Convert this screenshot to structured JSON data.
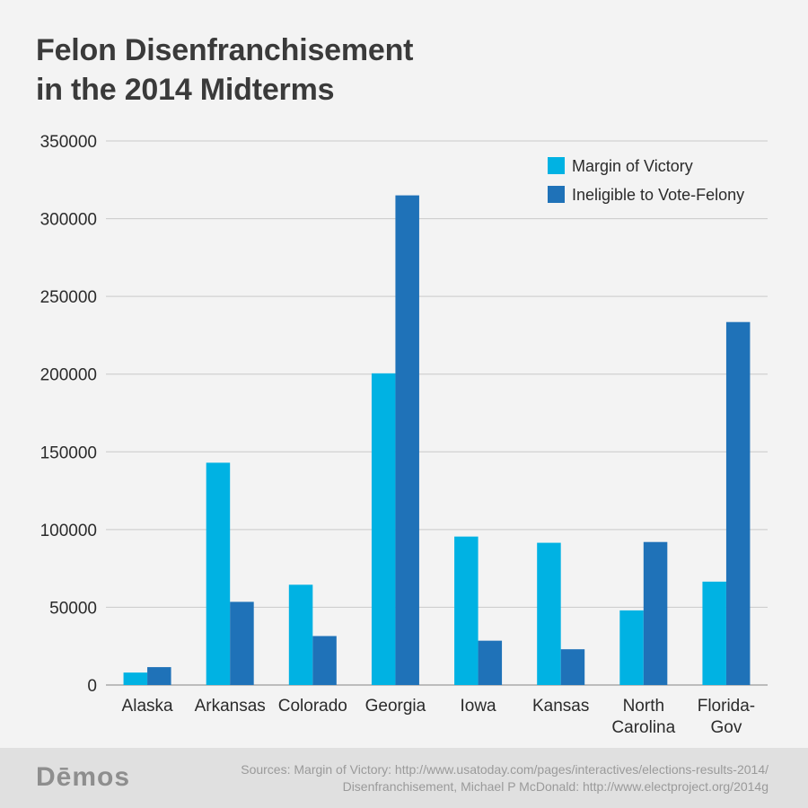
{
  "title_lines": [
    "Felon Disenfranchisement",
    "in the 2014 Midterms"
  ],
  "chart_data": {
    "type": "bar",
    "categories": [
      [
        "Alaska"
      ],
      [
        "Arkansas"
      ],
      [
        "Colorado"
      ],
      [
        "Georgia"
      ],
      [
        "Iowa"
      ],
      [
        "Kansas"
      ],
      [
        "North",
        "Carolina"
      ],
      [
        "Florida-",
        "Gov"
      ]
    ],
    "series": [
      {
        "name": "Margin of Victory",
        "color": "#00b2e3",
        "values": [
          8000,
          143000,
          64500,
          200500,
          95500,
          91500,
          48000,
          66500
        ]
      },
      {
        "name": "Ineligible to Vote-Felony",
        "color": "#1f72b8",
        "values": [
          11500,
          53500,
          31500,
          315000,
          28500,
          23000,
          92000,
          233500
        ]
      }
    ],
    "yticks": [
      "0",
      "50000",
      "100000",
      "150000",
      "200000",
      "250000",
      "300000",
      "350000"
    ],
    "ylim": [
      0,
      350000
    ],
    "grid": true,
    "legend": "top-right"
  },
  "footer": {
    "logo": "Dēmos",
    "source_lines": [
      "Sources: Margin of Victory: http://www.usatoday.com/pages/interactives/elections-results-2014/",
      "Disenfranchisement, Michael P McDonald: http://www.electproject.org/2014g"
    ]
  }
}
